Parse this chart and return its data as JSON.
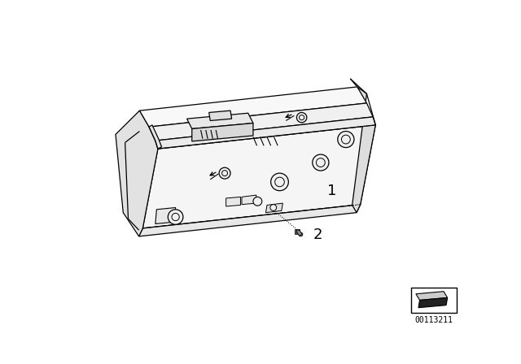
{
  "bg_color": "#ffffff",
  "line_color": "#000000",
  "label1": "1",
  "label2": "2",
  "diagram_id": "00113211",
  "figsize": [
    6.4,
    4.48
  ],
  "dpi": 100,
  "body_color": "#ffffff",
  "face_color": "#f2f2f2",
  "left_face_color": "#e0e0e0"
}
